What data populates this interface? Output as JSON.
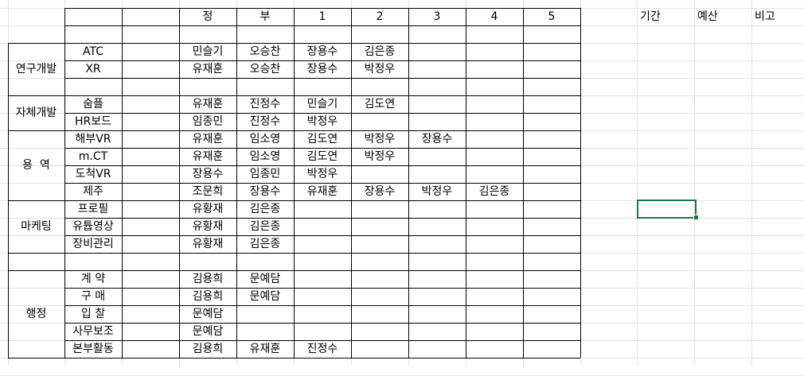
{
  "header": {
    "jeong": "정",
    "bu": "부",
    "n1": "1",
    "n2": "2",
    "n3": "3",
    "n4": "4",
    "n5": "5"
  },
  "side_header": {
    "period": "기간",
    "budget": "예산",
    "notes": "비고"
  },
  "groups": [
    {
      "label": "연구개발",
      "first_row": 2,
      "last_row": 4
    },
    {
      "label": "자체개발",
      "first_row": 5,
      "last_row": 6
    },
    {
      "label": "용  역",
      "first_row": 7,
      "last_row": 10
    },
    {
      "label": "마케팅",
      "first_row": 11,
      "last_row": 13
    },
    {
      "label": "",
      "first_row": 14,
      "last_row": 14
    },
    {
      "label": "행정",
      "first_row": 15,
      "last_row": 19
    }
  ],
  "rows": [
    [
      "",
      "",
      "",
      "",
      "",
      "",
      "",
      ""
    ],
    [
      "",
      "",
      "",
      "",
      "",
      "",
      "",
      ""
    ],
    [
      "ATC",
      "",
      "민슬기",
      "오승찬",
      "장용수",
      "김은종",
      "",
      "",
      ""
    ],
    [
      "XR",
      "",
      "유재훈",
      "오승찬",
      "장용수",
      "박정우",
      "",
      "",
      ""
    ],
    [
      "",
      "",
      "",
      "",
      "",
      "",
      "",
      "",
      ""
    ],
    [
      "숨플",
      "",
      "유재훈",
      "진정수",
      "민슬기",
      "김도연",
      "",
      "",
      ""
    ],
    [
      "HR보드",
      "",
      "임종민",
      "진정수",
      "박정우",
      "",
      "",
      "",
      ""
    ],
    [
      "해부VR",
      "",
      "유재훈",
      "임소영",
      "김도연",
      "박정우",
      "장용수",
      "",
      ""
    ],
    [
      "m.CT",
      "",
      "유재훈",
      "임소영",
      "김도연",
      "박정우",
      "",
      "",
      ""
    ],
    [
      "도척VR",
      "",
      "장용수",
      "임종민",
      "박정우",
      "",
      "",
      "",
      ""
    ],
    [
      "제주",
      "",
      "조문희",
      "장용수",
      "유재훈",
      "장용수",
      "박정우",
      "김은종",
      ""
    ],
    [
      "프로필",
      "",
      "유황재",
      "김은종",
      "",
      "",
      "",
      "",
      ""
    ],
    [
      "유튭영상",
      "",
      "유황재",
      "김은종",
      "",
      "",
      "",
      "",
      ""
    ],
    [
      "장비관리",
      "",
      "유황재",
      "김은종",
      "",
      "",
      "",
      "",
      ""
    ],
    [
      "",
      "",
      "",
      "",
      "",
      "",
      "",
      "",
      ""
    ],
    [
      "계 약",
      "",
      "김용희",
      "문예담",
      "",
      "",
      "",
      "",
      ""
    ],
    [
      "구 매",
      "",
      "김용희",
      "문예담",
      "",
      "",
      "",
      "",
      ""
    ],
    [
      "입 찰",
      "",
      "문예담",
      "",
      "",
      "",
      "",
      "",
      ""
    ],
    [
      "사무보조",
      "",
      "문예담",
      "",
      "",
      "",
      "",
      "",
      ""
    ],
    [
      "본부활동",
      "",
      "김용희",
      "유재훈",
      "진정수",
      "",
      "",
      "",
      ""
    ]
  ],
  "selection": {
    "cell": "L12"
  },
  "colors": {
    "gridline": "#e1e1e1",
    "border": "#000000",
    "selection": "#217346"
  }
}
